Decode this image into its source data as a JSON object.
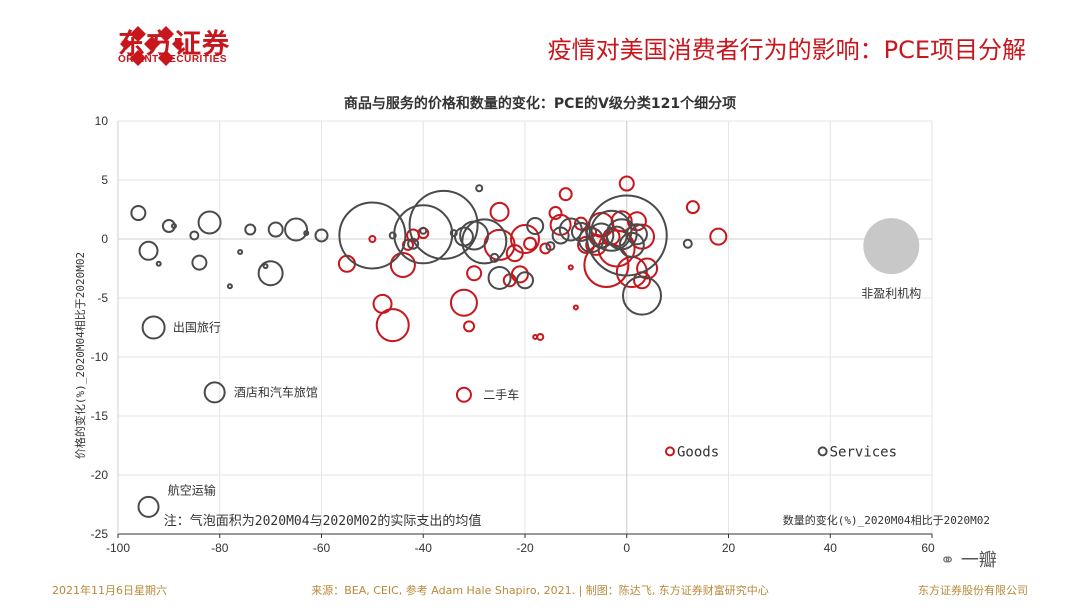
{
  "header": {
    "logo_cn": "东方证券",
    "logo_en": "ORIENT SECURITIES",
    "title": "疫情对美国消费者行为的影响：PCE项目分解"
  },
  "footer": {
    "date": "2021年11月6日星期六",
    "source": "来源：BEA, CEIC, 参考 Adam Hale Shapiro, 2021. | 制图：陈达飞, 东方证券财富研究中心",
    "company": "东方证券股份有限公司"
  },
  "watermark": "一瓣",
  "colors": {
    "goods": "#c8161d",
    "services": "#4a4a4a",
    "highlight": "#c8c8c8"
  },
  "chart_data": {
    "type": "scatter",
    "title": "商品与服务的价格和数量的变化：PCE的V级分类121个细分项",
    "xlabel": "数量的变化(%)_2020M04相比于2020M02",
    "ylabel": "价格的变化(%)_2020M04相比于2020M02",
    "xlim": [
      -100,
      60
    ],
    "ylim": [
      -25,
      10
    ],
    "xticks": [
      -100,
      -80,
      -60,
      -40,
      -20,
      0,
      20,
      40,
      60
    ],
    "yticks": [
      10,
      5,
      0,
      -5,
      -10,
      -15,
      -20,
      -25
    ],
    "grid": true,
    "legend": {
      "placement": "bottom-right",
      "entries": [
        "Goods",
        "Services"
      ]
    },
    "note": "注：气泡面积为2020M04与2020M02的实际支出的均值",
    "series": [
      {
        "name": "Goods",
        "points": [
          [
            -55,
            -2.1,
            8
          ],
          [
            -50,
            0,
            3
          ],
          [
            -48,
            -5.5,
            9
          ],
          [
            -46,
            -7.3,
            16
          ],
          [
            -44,
            -2.2,
            12
          ],
          [
            -43,
            -0.5,
            5
          ],
          [
            -42,
            0.3,
            6
          ],
          [
            -40,
            0.5,
            5
          ],
          [
            -32,
            -5.4,
            13
          ],
          [
            -31,
            -7.4,
            5
          ],
          [
            -30,
            -2.9,
            7
          ],
          [
            -25,
            2.3,
            9
          ],
          [
            -25,
            -0.5,
            15
          ],
          [
            -23,
            -3.5,
            6
          ],
          [
            -22,
            -1.2,
            8
          ],
          [
            -21,
            -3,
            8
          ],
          [
            -20,
            0,
            14
          ],
          [
            -19,
            -0.4,
            6
          ],
          [
            -18,
            -8.3,
            2
          ],
          [
            -17,
            -8.3,
            3
          ],
          [
            -16,
            -0.8,
            5
          ],
          [
            -14,
            2.2,
            6
          ],
          [
            -13,
            1.2,
            10
          ],
          [
            -12,
            3.8,
            6
          ],
          [
            -11,
            -2.4,
            2
          ],
          [
            -10,
            -5.8,
            2
          ],
          [
            -9,
            1.3,
            6
          ],
          [
            -8,
            -0.5,
            8
          ],
          [
            -7,
            0.6,
            5
          ],
          [
            -6,
            -0.5,
            10
          ],
          [
            -5,
            1.2,
            12
          ],
          [
            -4,
            -2.2,
            22
          ],
          [
            -3,
            0.2,
            8
          ],
          [
            -2,
            -0.8,
            18
          ],
          [
            -1,
            1.5,
            10
          ],
          [
            0,
            4.7,
            7
          ],
          [
            1,
            -2.8,
            15
          ],
          [
            2,
            1.5,
            9
          ],
          [
            3,
            0.2,
            12
          ],
          [
            4,
            -2.5,
            10
          ],
          [
            3,
            -3.5,
            8
          ],
          [
            13,
            2.7,
            6
          ],
          [
            18,
            0.2,
            8
          ],
          [
            -32,
            -13.2,
            7
          ]
        ]
      },
      {
        "name": "Services",
        "points": [
          [
            -96,
            2.2,
            7
          ],
          [
            -94,
            -1,
            9
          ],
          [
            -92,
            -2.1,
            2
          ],
          [
            -90,
            1.1,
            6
          ],
          [
            -89,
            1.1,
            2
          ],
          [
            -85,
            0.3,
            4
          ],
          [
            -84,
            -2,
            7
          ],
          [
            -82,
            1.4,
            11
          ],
          [
            -76,
            -1.1,
            2
          ],
          [
            -74,
            0.8,
            5
          ],
          [
            -71,
            -2.3,
            2
          ],
          [
            -70,
            -2.9,
            12
          ],
          [
            -69,
            0.8,
            7
          ],
          [
            -65,
            0.8,
            11
          ],
          [
            -63,
            0.5,
            2
          ],
          [
            -60,
            0.3,
            6
          ],
          [
            -50,
            0.3,
            33
          ],
          [
            -46,
            0.3,
            3
          ],
          [
            -42,
            -0.4,
            5
          ],
          [
            -40,
            0.7,
            3
          ],
          [
            -40,
            0.4,
            29
          ],
          [
            -36,
            1.2,
            34
          ],
          [
            -34,
            0.5,
            3
          ],
          [
            -32,
            0.2,
            9
          ],
          [
            -30,
            0.3,
            14
          ],
          [
            -29,
            4.3,
            3
          ],
          [
            -28,
            -0.2,
            22
          ],
          [
            -26,
            -1.6,
            4
          ],
          [
            -25,
            -3.3,
            11
          ],
          [
            -20,
            -3.5,
            8
          ],
          [
            -18,
            1.1,
            8
          ],
          [
            -15,
            -0.6,
            4
          ],
          [
            -13,
            0.3,
            8
          ],
          [
            -11,
            0.8,
            11
          ],
          [
            -9,
            0.6,
            9
          ],
          [
            -7,
            -0.1,
            12
          ],
          [
            -5,
            0.3,
            12
          ],
          [
            -3,
            0.7,
            20
          ],
          [
            -2,
            0.2,
            10
          ],
          [
            -1,
            0.4,
            15
          ],
          [
            0,
            0.3,
            40
          ],
          [
            1,
            -0.5,
            12
          ],
          [
            2,
            0.4,
            10
          ],
          [
            3,
            -4.8,
            19
          ],
          [
            12,
            -0.4,
            4
          ],
          [
            -93,
            -7.5,
            11
          ],
          [
            -81,
            -13,
            10
          ],
          [
            -94,
            -22.7,
            10
          ],
          [
            -78,
            -4,
            2
          ]
        ]
      },
      {
        "name": "非盈利机构",
        "points": [
          [
            52,
            -0.6,
            28
          ]
        ]
      }
    ],
    "annotations": [
      {
        "text": "出国旅行",
        "x": -90,
        "y": -7.5
      },
      {
        "text": "酒店和汽车旅馆",
        "x": -78,
        "y": -13
      },
      {
        "text": "二手车",
        "x": -29,
        "y": -13.2
      },
      {
        "text": "航空运输",
        "x": -91,
        "y": -21.3
      },
      {
        "text": "非盈利机构",
        "x": 52,
        "y": -4.6
      }
    ]
  }
}
